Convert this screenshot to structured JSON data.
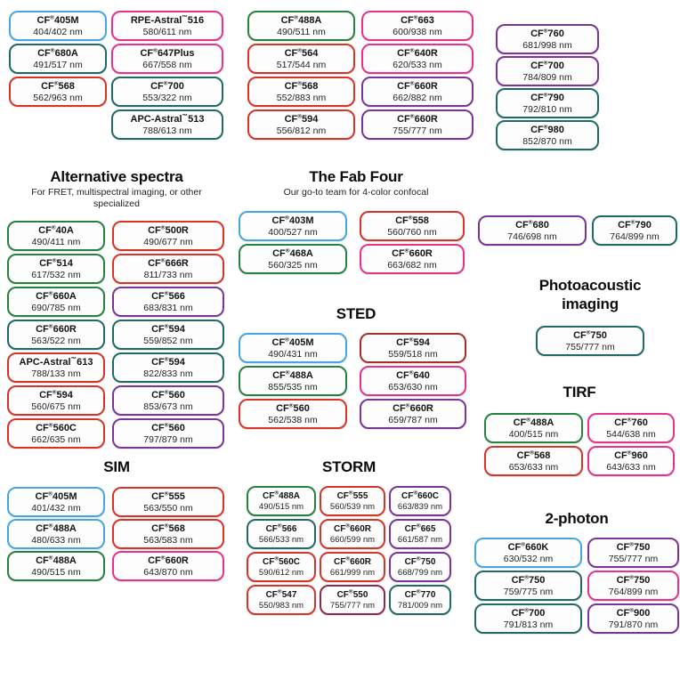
{
  "palette": {
    "blue": "#45a7e1",
    "green": "#27813f",
    "teal": "#1f6b64",
    "red": "#d93327",
    "pink": "#e9318b",
    "purple": "#7b3597",
    "darkred": "#a63029",
    "maroon": "#8e2a45"
  },
  "sections": [
    {
      "id": "top_left_a",
      "badges": [
        {
          "name": "CF®405M",
          "value": "404/402 nm",
          "color": "blue"
        },
        {
          "name": "CF®680A",
          "value": "491/517 nm",
          "color": "teal"
        },
        {
          "name": "CF®568",
          "value": "562/963 nm",
          "color": "red"
        }
      ]
    },
    {
      "id": "top_left_b",
      "badges": [
        {
          "name": "RPE-Astral™516",
          "value": "580/611 nm",
          "color": "pink"
        },
        {
          "name": "CF®647Plus",
          "value": "667/558 nm",
          "color": "pink"
        },
        {
          "name": "CF®700",
          "value": "553/322 nm",
          "color": "teal"
        },
        {
          "name": "APC-Astral™513",
          "value": "788/613 nm",
          "color": "teal"
        }
      ]
    },
    {
      "id": "top_mid_a",
      "badges": [
        {
          "name": "CF®488A",
          "value": "490/511 nm",
          "color": "green"
        },
        {
          "name": "CF®564",
          "value": "517/544 nm",
          "color": "red"
        },
        {
          "name": "CF®568",
          "value": "552/883 nm",
          "color": "red"
        },
        {
          "name": "CF®594",
          "value": "556/812 nm",
          "color": "red"
        }
      ]
    },
    {
      "id": "top_mid_b",
      "badges": [
        {
          "name": "CF®663",
          "value": "600/938 nm",
          "color": "pink"
        },
        {
          "name": "CF®640R",
          "value": "620/533 nm",
          "color": "pink"
        },
        {
          "name": "CF®660R",
          "value": "662/882 nm",
          "color": "purple"
        },
        {
          "name": "CF®660R",
          "value": "755/777 nm",
          "color": "purple"
        }
      ]
    },
    {
      "id": "top_right",
      "badges": [
        {
          "name": "CF®760",
          "value": "681/998 nm",
          "color": "purple"
        },
        {
          "name": "CF®700",
          "value": "784/809 nm",
          "color": "purple"
        },
        {
          "name": "CF®790",
          "value": "792/810 nm",
          "color": "teal"
        },
        {
          "name": "CF®980",
          "value": "852/870 nm",
          "color": "teal"
        }
      ]
    },
    {
      "id": "alternative_spectra",
      "title": "Alternative spectra",
      "subtitle": "For FRET, multispectral imaging, or other specialized",
      "badges": [
        {
          "name": "CF®40A",
          "value": "490/411 nm",
          "color": "green"
        },
        {
          "name": "CF®500R",
          "value": "490/677 nm",
          "color": "red"
        },
        {
          "name": "CF®514",
          "value": "617/532 nm",
          "color": "green"
        },
        {
          "name": "CF®666R",
          "value": "811/733 nm",
          "color": "red"
        },
        {
          "name": "CF®660A",
          "value": "690/785 nm",
          "color": "green"
        },
        {
          "name": "CF®566",
          "value": "683/831 nm",
          "color": "purple"
        },
        {
          "name": "CF®660R",
          "value": "563/522 nm",
          "color": "teal"
        },
        {
          "name": "CF®594",
          "value": "559/852 nm",
          "color": "teal"
        },
        {
          "name": "APC-Astral™613",
          "value": "788/133 nm",
          "color": "red"
        },
        {
          "name": "CF®594",
          "value": "822/833 nm",
          "color": "teal"
        },
        {
          "name": "CF®594",
          "value": "560/675 nm",
          "color": "red"
        },
        {
          "name": "CF®560",
          "value": "853/673 nm",
          "color": "purple"
        },
        {
          "name": "CF®560C",
          "value": "662/635 nm",
          "color": "red"
        },
        {
          "name": "CF®560",
          "value": "797/879 nm",
          "color": "purple"
        }
      ]
    },
    {
      "id": "fab_four",
      "title": "The Fab Four",
      "subtitle": "Our go-to team for 4-color confocal",
      "badges": [
        {
          "name": "CF®403M",
          "value": "400/527 nm",
          "color": "blue"
        },
        {
          "name": "CF®558",
          "value": "560/760 nm",
          "color": "red"
        },
        {
          "name": "CF®468A",
          "value": "560/325 nm",
          "color": "green"
        },
        {
          "name": "CF®660R",
          "value": "663/682 nm",
          "color": "pink"
        }
      ]
    },
    {
      "id": "right_mid",
      "badges": [
        {
          "name": "CF®680",
          "value": "746/698 nm",
          "color": "purple"
        },
        {
          "name": "CF®790",
          "value": "764/899 nm",
          "color": "teal"
        }
      ]
    },
    {
      "id": "sted",
      "title": "STED",
      "badges": [
        {
          "name": "CF®405M",
          "value": "490/431 nm",
          "color": "blue"
        },
        {
          "name": "CF®594",
          "value": "559/518 nm",
          "color": "darkred"
        },
        {
          "name": "CF®488A",
          "value": "855/535 nm",
          "color": "green"
        },
        {
          "name": "CF®640",
          "value": "653/630 nm",
          "color": "pink"
        },
        {
          "name": "CF®560",
          "value": "562/538 nm",
          "color": "red"
        },
        {
          "name": "CF®660R",
          "value": "659/787 nm",
          "color": "purple"
        }
      ]
    },
    {
      "id": "photoacoustic",
      "title": "Photoacoustic imaging",
      "badges": [
        {
          "name": "CF®750",
          "value": "755/777 nm",
          "color": "teal"
        }
      ]
    },
    {
      "id": "tirf",
      "title": "TIRF",
      "badges": [
        {
          "name": "CF®488A",
          "value": "400/515 nm",
          "color": "green"
        },
        {
          "name": "CF®760",
          "value": "544/638 nm",
          "color": "pink"
        },
        {
          "name": "CF®568",
          "value": "653/633 nm",
          "color": "red"
        },
        {
          "name": "CF®960",
          "value": "643/633 nm",
          "color": "pink"
        }
      ]
    },
    {
      "id": "sim",
      "title": "SIM",
      "badges": [
        {
          "name": "CF®405M",
          "value": "401/432 nm",
          "color": "blue"
        },
        {
          "name": "CF®555",
          "value": "563/550 nm",
          "color": "red"
        },
        {
          "name": "CF®488A",
          "value": "480/633 nm",
          "color": "blue"
        },
        {
          "name": "CF®568",
          "value": "563/583 nm",
          "color": "red"
        },
        {
          "name": "CF®488A",
          "value": "490/515 nm",
          "color": "green"
        },
        {
          "name": "CF®660R",
          "value": "643/870 nm",
          "color": "pink"
        }
      ]
    },
    {
      "id": "storm",
      "title": "STORM",
      "badges": [
        {
          "name": "CF®488A",
          "value": "490/515 nm",
          "color": "green"
        },
        {
          "name": "CF®555",
          "value": "560/539 nm",
          "color": "red"
        },
        {
          "name": "CF®660C",
          "value": "663/839 nm",
          "color": "purple"
        },
        {
          "name": "CF®566",
          "value": "566/533 nm",
          "color": "teal"
        },
        {
          "name": "CF®660R",
          "value": "660/599 nm",
          "color": "red"
        },
        {
          "name": "CF®665",
          "value": "661/587 nm",
          "color": "purple"
        },
        {
          "name": "CF®560C",
          "value": "590/612 nm",
          "color": "red"
        },
        {
          "name": "CF®660R",
          "value": "661/999 nm",
          "color": "red"
        },
        {
          "name": "CF®750",
          "value": "668/799 nm",
          "color": "purple"
        },
        {
          "name": "CF®547",
          "value": "550/983 nm",
          "color": "red"
        },
        {
          "name": "CF®550",
          "value": "755/777 nm",
          "color": "maroon"
        },
        {
          "name": "CF®770",
          "value": "781/009 nm",
          "color": "teal"
        }
      ]
    },
    {
      "id": "two_photon",
      "title": "2-photon",
      "badges": [
        {
          "name": "CF®660K",
          "value": "630/532 nm",
          "color": "blue"
        },
        {
          "name": "CF®750",
          "value": "755/777 nm",
          "color": "purple"
        },
        {
          "name": "CF®750",
          "value": "759/775 nm",
          "color": "teal"
        },
        {
          "name": "CF®750",
          "value": "764/899 nm",
          "color": "pink"
        },
        {
          "name": "CF®700",
          "value": "791/813 nm",
          "color": "teal"
        },
        {
          "name": "CF®900",
          "value": "791/870 nm",
          "color": "purple"
        }
      ]
    }
  ]
}
